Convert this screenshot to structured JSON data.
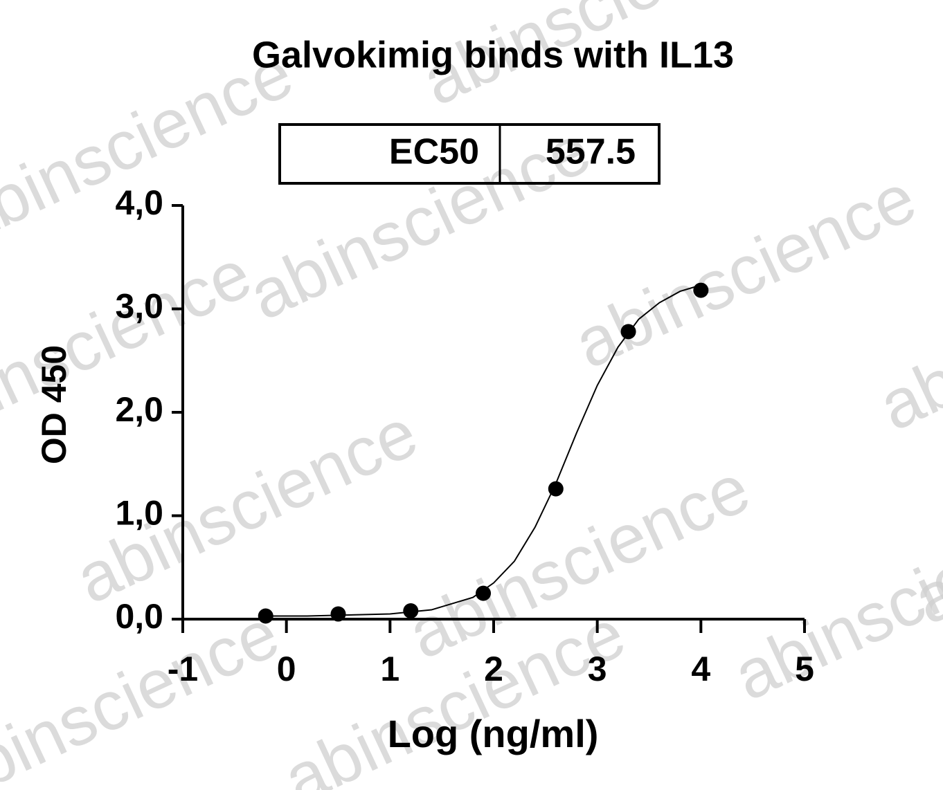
{
  "chart_data": {
    "type": "scatter",
    "title": "Galvokimig binds with IL13",
    "ec50_table": {
      "label": "EC50",
      "value": "557.5"
    },
    "watermark": "abinscience",
    "x_label": "Log (ng/ml)",
    "y_label": "OD 450",
    "series": [
      {
        "name": "data",
        "color": "#000000",
        "mode": "markers",
        "x": [
          -0.2,
          0.5,
          1.2,
          1.9,
          2.6,
          3.3,
          4.0
        ],
        "values": [
          0.03,
          0.05,
          0.08,
          0.25,
          1.26,
          2.78,
          3.18
        ]
      },
      {
        "name": "fit",
        "color": "#000000",
        "mode": "line",
        "x": [
          -0.2,
          0.2,
          0.6,
          1.0,
          1.4,
          1.8,
          2.0,
          2.2,
          2.4,
          2.6,
          2.8,
          3.0,
          3.2,
          3.4,
          3.6,
          3.8,
          4.0
        ],
        "values": [
          0.03,
          0.03,
          0.04,
          0.05,
          0.09,
          0.21,
          0.35,
          0.56,
          0.89,
          1.31,
          1.8,
          2.26,
          2.63,
          2.9,
          3.06,
          3.17,
          3.23
        ]
      }
    ],
    "xlim": [
      -1,
      5
    ],
    "xticks": [
      -1,
      0,
      1,
      2,
      3,
      4,
      5
    ],
    "ylim": [
      0,
      4
    ],
    "yticks": [
      {
        "value": 0,
        "label": "0,0"
      },
      {
        "value": 1,
        "label": "1,0"
      },
      {
        "value": 2,
        "label": "2,0"
      },
      {
        "value": 3,
        "label": "3,0"
      },
      {
        "value": 4,
        "label": "4,0"
      }
    ]
  }
}
